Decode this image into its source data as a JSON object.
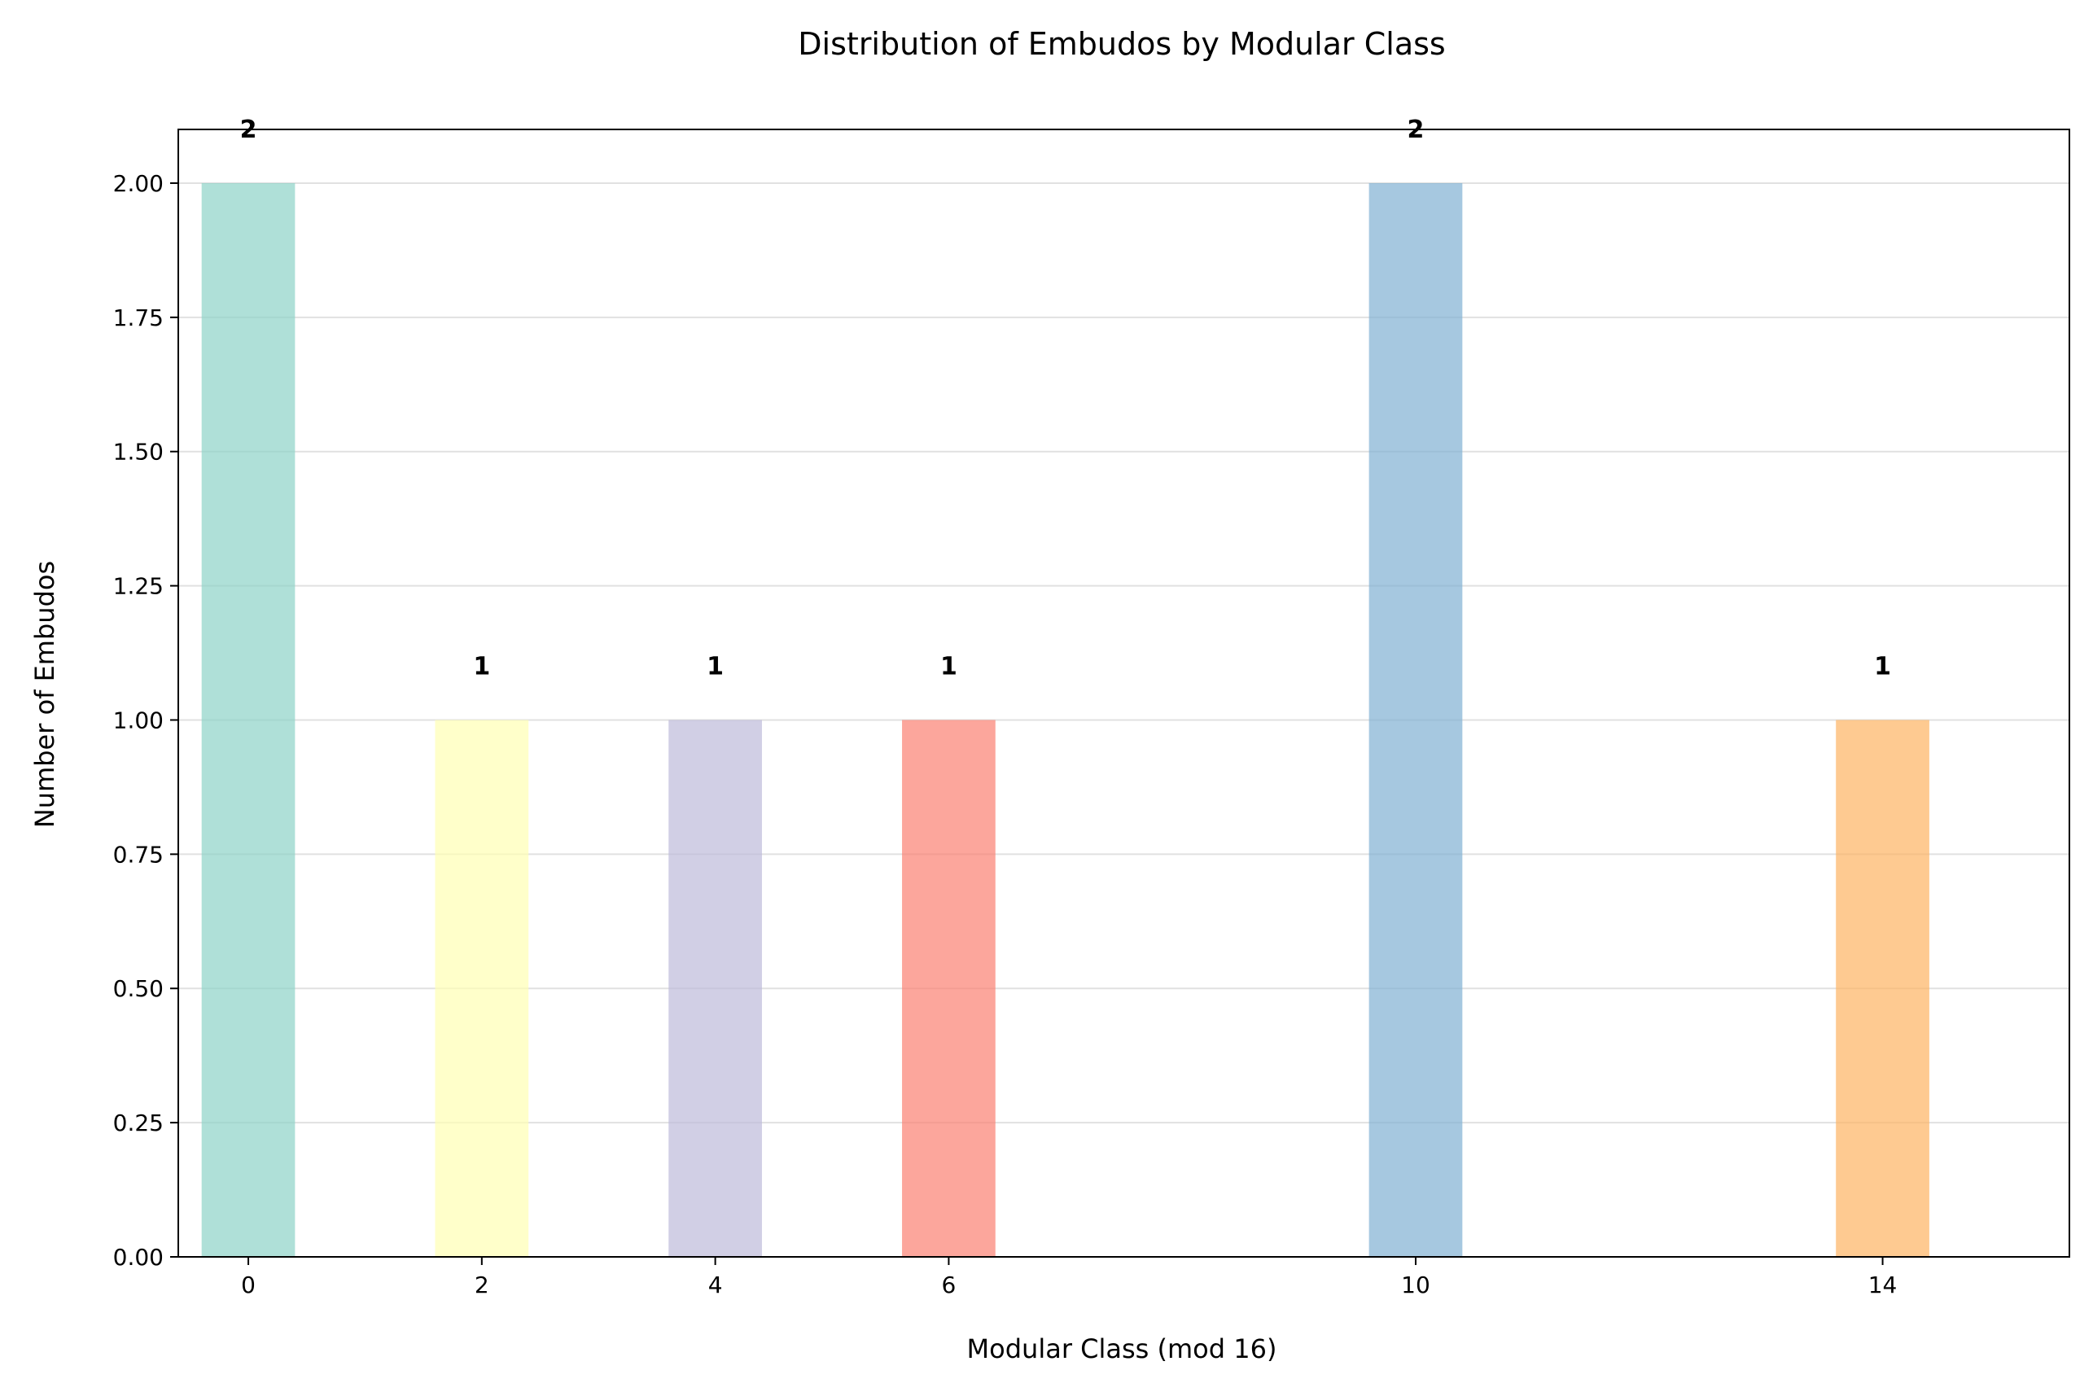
{
  "chart_data": {
    "type": "bar",
    "title": "Distribution of Embudos by Modular Class",
    "xlabel": "Modular Class (mod 16)",
    "ylabel": "Number of Embudos",
    "x": [
      0,
      2,
      4,
      6,
      10,
      14
    ],
    "values": [
      2,
      1,
      1,
      1,
      2,
      1
    ],
    "data_labels": [
      "2",
      "1",
      "1",
      "1",
      "2",
      "1"
    ],
    "x_tick_labels": [
      "0",
      "2",
      "4",
      "6",
      "10",
      "14"
    ],
    "y_ticks": [
      0,
      0.25,
      0.5,
      0.75,
      1,
      1.25,
      1.5,
      1.75,
      2
    ],
    "y_tick_labels": [
      "0.00",
      "0.25",
      "0.50",
      "0.75",
      "1.00",
      "1.25",
      "1.50",
      "1.75",
      "2.00"
    ],
    "ylim": [
      0,
      2.1
    ],
    "xlim": [
      -0.6,
      15.6
    ],
    "bar_width": 0.8,
    "grid": "y",
    "colors": [
      "#8dd3c7",
      "#ffffb3",
      "#bebada",
      "#fb8072",
      "#80b1d3",
      "#fdb462"
    ],
    "bar_opacity": 0.7
  }
}
